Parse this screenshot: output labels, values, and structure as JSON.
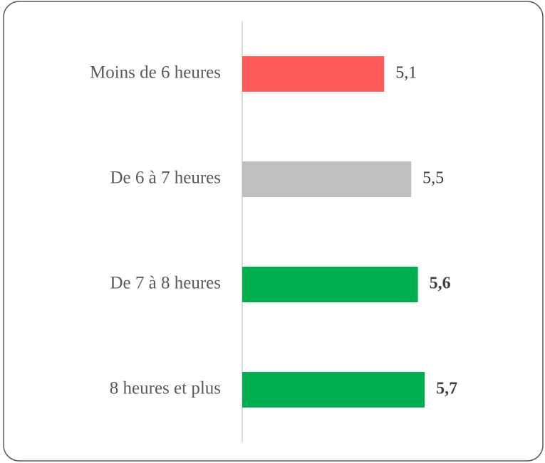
{
  "chart_data": {
    "type": "bar",
    "orientation": "horizontal",
    "categories": [
      "Moins de 6 heures",
      "De 6 à 7 heures",
      "De 7 à 8 heures",
      "8 heures et plus"
    ],
    "values": [
      5.1,
      5.5,
      5.6,
      5.7
    ],
    "value_labels": [
      "5,1",
      "5,5",
      "5,6",
      "5,7"
    ],
    "colors": [
      "#ff5b5b",
      "#bfbfbf",
      "#00af50",
      "#00af50"
    ],
    "value_label_bold": [
      false,
      false,
      true,
      true
    ],
    "xlim": [
      3,
      6.5
    ]
  }
}
